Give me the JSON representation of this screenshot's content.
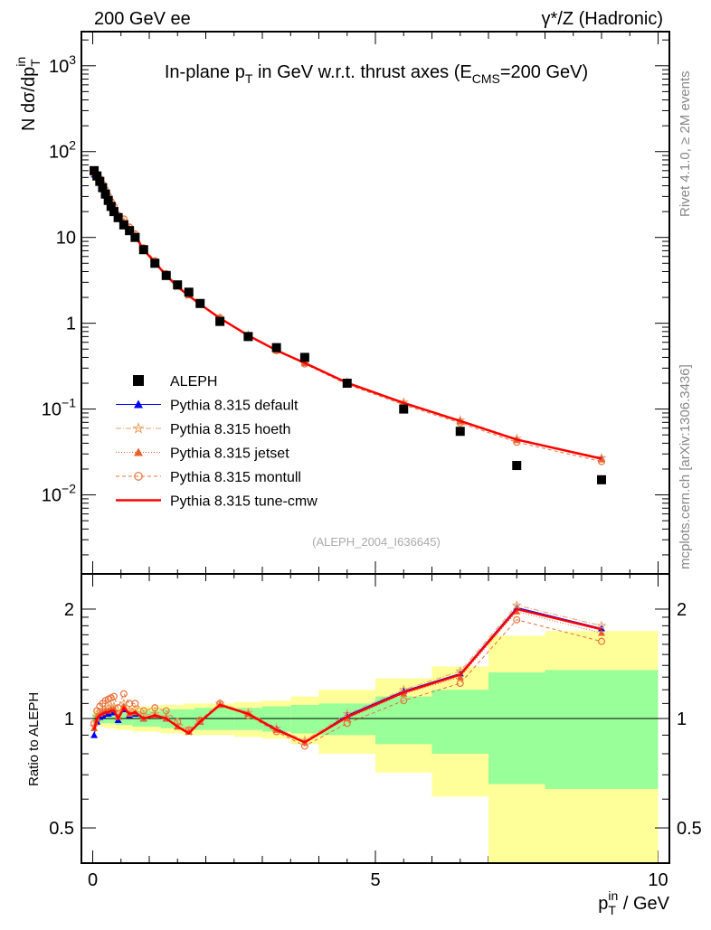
{
  "header": {
    "left": "200 GeV ee",
    "right": "γ*/Z (Hadronic)"
  },
  "side": {
    "rivet": "Rivet 4.1.0, ≥ 2M events",
    "mcplots": "mcplots.cern.ch [arXiv:1306.3436]"
  },
  "chart_data": {
    "type": "line",
    "title_parts": {
      "a": "In-plane p",
      "b": "T",
      "c": " in GeV w.r.t. thrust axes (E",
      "d": "CMS",
      "e": "=200 GeV)"
    },
    "analysis_id": "(ALEPH_2004_I636645)",
    "ylabel": {
      "a": "N  dσ/dp",
      "sup": "in",
      "sub": "T"
    },
    "xlabel": {
      "a": "p",
      "sup": "in",
      "sub": "T",
      "b": " / GeV"
    },
    "ratio_ylabel": "Ratio to ALEPH",
    "xlim": [
      -0.2,
      10.2
    ],
    "ylim": [
      0.0012,
      2500
    ],
    "ratio_ylim": [
      0.4,
      2.5
    ],
    "x_ticks": [
      0,
      5,
      10
    ],
    "y_ticks": [
      {
        "v": 0.01,
        "b": "10",
        "e": "−2"
      },
      {
        "v": 0.1,
        "b": "10",
        "e": "−1"
      },
      {
        "v": 1,
        "b": "1",
        "e": ""
      },
      {
        "v": 10,
        "b": "10",
        "e": ""
      },
      {
        "v": 100,
        "b": "10",
        "e": "2"
      },
      {
        "v": 1000,
        "b": "10",
        "e": "3"
      }
    ],
    "ratio_ticks": [
      0.5,
      1,
      2
    ],
    "data": {
      "name": "ALEPH",
      "x": [
        0.025,
        0.075,
        0.125,
        0.175,
        0.225,
        0.275,
        0.325,
        0.375,
        0.45,
        0.55,
        0.65,
        0.75,
        0.9,
        1.1,
        1.3,
        1.5,
        1.7,
        1.9,
        2.25,
        2.75,
        3.25,
        3.75,
        4.5,
        5.5,
        6.5,
        7.5,
        9.0
      ],
      "xlo": [
        0,
        0.05,
        0.1,
        0.15,
        0.2,
        0.25,
        0.3,
        0.35,
        0.4,
        0.5,
        0.6,
        0.7,
        0.8,
        1.0,
        1.2,
        1.4,
        1.6,
        1.8,
        2.0,
        2.5,
        3.0,
        3.5,
        4.0,
        5.0,
        6.0,
        7.0,
        8.0
      ],
      "xhi": [
        0.05,
        0.1,
        0.15,
        0.2,
        0.25,
        0.3,
        0.35,
        0.4,
        0.5,
        0.6,
        0.7,
        0.8,
        1.0,
        1.2,
        1.4,
        1.6,
        1.8,
        2.0,
        2.5,
        3.0,
        3.5,
        4.0,
        5.0,
        6.0,
        7.0,
        8.0,
        10.0
      ],
      "y": [
        60,
        52,
        45,
        38,
        32,
        27,
        23,
        20,
        17,
        14,
        12,
        10,
        7.2,
        5.0,
        3.6,
        2.8,
        2.3,
        1.7,
        1.05,
        0.7,
        0.52,
        0.4,
        0.2,
        0.1,
        0.055,
        0.022,
        0.015
      ],
      "stat_rel": [
        0.03,
        0.03,
        0.03,
        0.03,
        0.03,
        0.03,
        0.03,
        0.03,
        0.04,
        0.04,
        0.04,
        0.05,
        0.05,
        0.05,
        0.06,
        0.06,
        0.06,
        0.07,
        0.07,
        0.07,
        0.08,
        0.09,
        0.1,
        0.15,
        0.2,
        0.34,
        0.36
      ],
      "tot_rel": [
        0.05,
        0.05,
        0.05,
        0.05,
        0.06,
        0.06,
        0.06,
        0.06,
        0.07,
        0.07,
        0.07,
        0.08,
        0.08,
        0.08,
        0.09,
        0.09,
        0.1,
        0.1,
        0.1,
        0.11,
        0.12,
        0.15,
        0.2,
        0.29,
        0.39,
        0.69,
        0.74
      ]
    },
    "series": [
      {
        "name": "Pythia 8.315 default",
        "color": "#0000ff",
        "marker": "triangle",
        "dash": "",
        "ratio": [
          0.9,
          0.98,
          1.01,
          1.02,
          1.03,
          1.03,
          1.04,
          1.04,
          0.99,
          1.06,
          1.02,
          1.03,
          1.0,
          1.02,
          1.0,
          0.95,
          0.92,
          0.98,
          1.09,
          1.03,
          0.94,
          0.86,
          1.02,
          1.19,
          1.33,
          2.02,
          1.77
        ]
      },
      {
        "name": "Pythia 8.315 hoeth",
        "color": "#e8a060",
        "marker": "star",
        "dash": "6,2,1,2",
        "ratio": [
          0.95,
          1.01,
          1.04,
          1.05,
          1.06,
          1.07,
          1.08,
          1.08,
          1.03,
          1.1,
          1.05,
          1.06,
          1.02,
          1.03,
          1.01,
          0.96,
          0.92,
          0.98,
          1.1,
          1.04,
          0.94,
          0.87,
          1.03,
          1.2,
          1.35,
          2.05,
          1.8
        ]
      },
      {
        "name": "Pythia 8.315 jetset",
        "color": "#e8602c",
        "marker": "filltriangle",
        "dash": "1,2",
        "ratio": [
          0.94,
          1.0,
          1.03,
          1.04,
          1.05,
          1.05,
          1.06,
          1.06,
          1.01,
          1.08,
          1.03,
          1.04,
          1.0,
          1.02,
          1.0,
          0.95,
          0.92,
          0.98,
          1.09,
          1.03,
          0.93,
          0.86,
          1.0,
          1.17,
          1.3,
          1.97,
          1.72
        ]
      },
      {
        "name": "Pythia 8.315 montull",
        "color": "#e8703a",
        "marker": "circle",
        "dash": "4,3",
        "ratio": [
          0.97,
          1.05,
          1.08,
          1.1,
          1.12,
          1.13,
          1.14,
          1.15,
          1.07,
          1.17,
          1.1,
          1.1,
          1.05,
          1.07,
          1.05,
          0.98,
          0.93,
          0.99,
          1.1,
          1.02,
          0.92,
          0.84,
          0.97,
          1.12,
          1.25,
          1.87,
          1.63
        ]
      },
      {
        "name": "Pythia 8.315 tune-cmw",
        "color": "#ff0000",
        "marker": "none",
        "dash": "",
        "ratio": [
          0.93,
          1.0,
          1.02,
          1.03,
          1.04,
          1.04,
          1.05,
          1.05,
          1.0,
          1.07,
          1.03,
          1.04,
          1.0,
          1.02,
          1.0,
          0.95,
          0.91,
          0.98,
          1.09,
          1.03,
          0.93,
          0.86,
          1.01,
          1.18,
          1.32,
          2.0,
          1.76
        ]
      }
    ],
    "colors": {
      "stat_band": "#99ff99",
      "tot_band": "#ffff99"
    }
  }
}
